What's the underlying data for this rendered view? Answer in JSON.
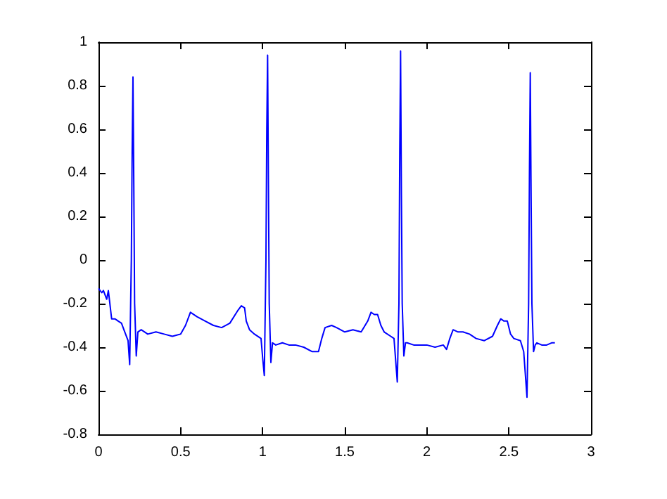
{
  "chart_data": {
    "type": "line",
    "x": [
      0,
      0.02,
      0.03,
      0.05,
      0.06,
      0.08,
      0.1,
      0.12,
      0.14,
      0.16,
      0.18,
      0.19,
      0.2,
      0.205,
      0.21,
      0.215,
      0.22,
      0.23,
      0.24,
      0.26,
      0.3,
      0.35,
      0.4,
      0.45,
      0.5,
      0.53,
      0.56,
      0.6,
      0.65,
      0.7,
      0.75,
      0.8,
      0.85,
      0.87,
      0.89,
      0.9,
      0.92,
      0.95,
      0.99,
      1.0,
      1.01,
      1.02,
      1.025,
      1.03,
      1.035,
      1.04,
      1.05,
      1.06,
      1.08,
      1.12,
      1.16,
      1.2,
      1.25,
      1.3,
      1.34,
      1.36,
      1.38,
      1.42,
      1.45,
      1.5,
      1.55,
      1.6,
      1.64,
      1.66,
      1.68,
      1.7,
      1.72,
      1.74,
      1.78,
      1.8,
      1.82,
      1.83,
      1.835,
      1.84,
      1.845,
      1.85,
      1.86,
      1.87,
      1.88,
      1.92,
      1.96,
      2.0,
      2.05,
      2.1,
      2.12,
      2.14,
      2.16,
      2.19,
      2.22,
      2.26,
      2.3,
      2.35,
      2.4,
      2.43,
      2.45,
      2.47,
      2.49,
      2.51,
      2.53,
      2.57,
      2.59,
      2.61,
      2.62,
      2.625,
      2.63,
      2.635,
      2.64,
      2.65,
      2.66,
      2.67,
      2.7,
      2.73,
      2.76,
      2.78
    ],
    "values": [
      -0.13,
      -0.15,
      -0.14,
      -0.18,
      -0.14,
      -0.27,
      -0.27,
      -0.28,
      -0.29,
      -0.33,
      -0.37,
      -0.48,
      0.0,
      0.5,
      0.84,
      0.35,
      -0.2,
      -0.44,
      -0.33,
      -0.32,
      -0.34,
      -0.33,
      -0.34,
      -0.35,
      -0.34,
      -0.3,
      -0.24,
      -0.26,
      -0.28,
      -0.3,
      -0.31,
      -0.29,
      -0.23,
      -0.21,
      -0.22,
      -0.28,
      -0.32,
      -0.34,
      -0.36,
      -0.45,
      -0.53,
      0.0,
      0.6,
      0.94,
      0.35,
      -0.2,
      -0.47,
      -0.38,
      -0.39,
      -0.38,
      -0.39,
      -0.39,
      -0.4,
      -0.42,
      -0.42,
      -0.36,
      -0.31,
      -0.3,
      -0.31,
      -0.33,
      -0.32,
      -0.33,
      -0.28,
      -0.24,
      -0.25,
      -0.25,
      -0.3,
      -0.33,
      -0.35,
      -0.36,
      -0.56,
      -0.2,
      0.5,
      0.96,
      0.3,
      -0.2,
      -0.44,
      -0.38,
      -0.38,
      -0.39,
      -0.39,
      -0.39,
      -0.4,
      -0.39,
      -0.41,
      -0.36,
      -0.32,
      -0.33,
      -0.33,
      -0.34,
      -0.36,
      -0.37,
      -0.35,
      -0.3,
      -0.27,
      -0.28,
      -0.28,
      -0.34,
      -0.36,
      -0.37,
      -0.42,
      -0.63,
      -0.2,
      0.4,
      0.86,
      0.3,
      -0.2,
      -0.42,
      -0.39,
      -0.38,
      -0.39,
      -0.39,
      -0.38,
      -0.38
    ],
    "color": "#0000ff",
    "xlim": [
      0,
      3
    ],
    "xticks": [
      0,
      0.5,
      1,
      1.5,
      2,
      2.5,
      3
    ],
    "ylim": [
      -0.8,
      1
    ],
    "yticks": [
      -0.8,
      -0.6,
      -0.4,
      -0.2,
      0,
      0.2,
      0.4,
      0.6,
      0.8,
      1
    ],
    "grid": false,
    "marker": "none",
    "line_style": "solid"
  }
}
